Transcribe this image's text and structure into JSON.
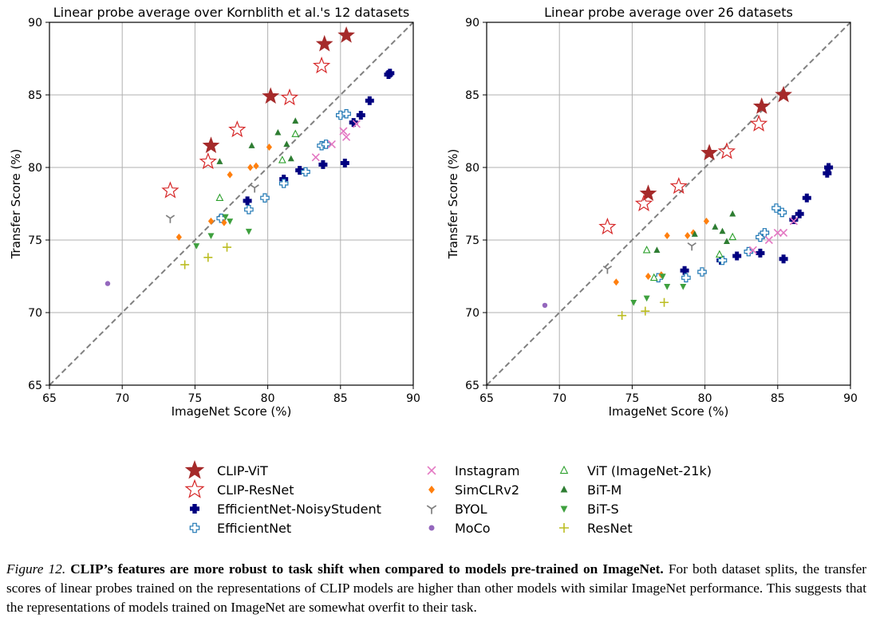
{
  "chart_data": [
    {
      "type": "scatter",
      "title": "Linear probe average over Kornblith et al.'s 12 datasets",
      "xlabel": "ImageNet Score (%)",
      "ylabel": "Transfer Score (%)",
      "xlim": [
        65,
        90
      ],
      "ylim": [
        65,
        90
      ],
      "xticks": [
        "65",
        "70",
        "75",
        "80",
        "85",
        "90"
      ],
      "yticks": [
        "65",
        "70",
        "75",
        "80",
        "85",
        "90"
      ],
      "grid": true,
      "diagonal": "y = x (dashed)",
      "series": [
        {
          "name": "CLIP-ViT",
          "points": [
            [
              76.1,
              81.5
            ],
            [
              80.2,
              84.9
            ],
            [
              83.9,
              88.5
            ],
            [
              85.4,
              89.1
            ]
          ]
        },
        {
          "name": "CLIP-ResNet",
          "points": [
            [
              73.3,
              78.4
            ],
            [
              75.9,
              80.4
            ],
            [
              77.9,
              82.6
            ],
            [
              81.5,
              84.8
            ],
            [
              83.7,
              87.0
            ]
          ]
        },
        {
          "name": "EfficientNet-NoisyStudent",
          "points": [
            [
              78.6,
              77.7
            ],
            [
              81.1,
              79.2
            ],
            [
              82.2,
              79.8
            ],
            [
              83.8,
              80.2
            ],
            [
              85.3,
              80.3
            ],
            [
              85.9,
              83.1
            ],
            [
              86.4,
              83.6
            ],
            [
              87.0,
              84.6
            ],
            [
              88.3,
              86.4
            ],
            [
              88.4,
              86.5
            ]
          ]
        },
        {
          "name": "EfficientNet",
          "points": [
            [
              76.8,
              76.5
            ],
            [
              78.7,
              77.1
            ],
            [
              79.8,
              77.9
            ],
            [
              81.1,
              78.9
            ],
            [
              82.6,
              79.7
            ],
            [
              83.7,
              81.5
            ],
            [
              84.0,
              81.6
            ],
            [
              85.0,
              83.6
            ],
            [
              85.4,
              83.7
            ]
          ]
        },
        {
          "name": "Instagram",
          "points": [
            [
              83.3,
              80.7
            ],
            [
              84.4,
              81.6
            ],
            [
              85.2,
              82.5
            ],
            [
              85.4,
              82.1
            ],
            [
              86.1,
              83.0
            ]
          ]
        },
        {
          "name": "SimCLRv2",
          "points": [
            [
              73.9,
              75.2
            ],
            [
              76.1,
              76.3
            ],
            [
              77.0,
              76.2
            ],
            [
              77.4,
              79.5
            ],
            [
              78.8,
              80.0
            ],
            [
              79.2,
              80.1
            ],
            [
              80.1,
              81.4
            ]
          ]
        },
        {
          "name": "BYOL",
          "points": [
            [
              73.3,
              76.5
            ],
            [
              79.1,
              78.6
            ]
          ]
        },
        {
          "name": "MoCo",
          "points": [
            [
              69.0,
              72.0
            ]
          ]
        },
        {
          "name": "ViT (ImageNet-21k)",
          "points": [
            [
              76.7,
              77.9
            ],
            [
              81.0,
              80.5
            ],
            [
              81.9,
              82.3
            ]
          ]
        },
        {
          "name": "BiT-M",
          "points": [
            [
              76.7,
              80.4
            ],
            [
              78.9,
              81.5
            ],
            [
              80.7,
              82.4
            ],
            [
              81.3,
              81.6
            ],
            [
              81.6,
              80.6
            ],
            [
              81.9,
              83.2
            ]
          ]
        },
        {
          "name": "BiT-S",
          "points": [
            [
              75.1,
              74.6
            ],
            [
              76.1,
              75.3
            ],
            [
              77.1,
              76.6
            ],
            [
              77.4,
              76.3
            ],
            [
              78.7,
              75.6
            ]
          ]
        },
        {
          "name": "ResNet",
          "points": [
            [
              74.3,
              73.3
            ],
            [
              75.9,
              73.8
            ],
            [
              77.2,
              74.5
            ]
          ]
        }
      ]
    },
    {
      "type": "scatter",
      "title": "Linear probe average over 26 datasets",
      "xlabel": "ImageNet Score (%)",
      "ylabel": "Transfer Score (%)",
      "xlim": [
        65,
        90
      ],
      "ylim": [
        65,
        90
      ],
      "xticks": [
        "65",
        "70",
        "75",
        "80",
        "85",
        "90"
      ],
      "yticks": [
        "65",
        "70",
        "75",
        "80",
        "85",
        "90"
      ],
      "grid": true,
      "diagonal": "y = x (dashed)",
      "series": [
        {
          "name": "CLIP-ViT",
          "points": [
            [
              76.1,
              78.2
            ],
            [
              80.3,
              81.0
            ],
            [
              83.9,
              84.2
            ],
            [
              85.4,
              85.0
            ]
          ]
        },
        {
          "name": "CLIP-ResNet",
          "points": [
            [
              73.3,
              75.9
            ],
            [
              75.8,
              77.5
            ],
            [
              78.2,
              78.7
            ],
            [
              81.5,
              81.1
            ],
            [
              83.7,
              83.0
            ]
          ]
        },
        {
          "name": "EfficientNet-NoisyStudent",
          "points": [
            [
              78.6,
              72.9
            ],
            [
              81.1,
              73.6
            ],
            [
              82.2,
              73.9
            ],
            [
              83.8,
              74.1
            ],
            [
              85.4,
              73.7
            ],
            [
              86.1,
              76.4
            ],
            [
              86.5,
              76.8
            ],
            [
              87.0,
              77.9
            ],
            [
              88.4,
              79.6
            ],
            [
              88.5,
              80.0
            ]
          ]
        },
        {
          "name": "EfficientNet",
          "points": [
            [
              76.8,
              72.4
            ],
            [
              78.7,
              72.4
            ],
            [
              79.8,
              72.8
            ],
            [
              81.2,
              73.6
            ],
            [
              83.0,
              74.2
            ],
            [
              83.8,
              75.2
            ],
            [
              84.1,
              75.5
            ],
            [
              84.9,
              77.2
            ],
            [
              85.3,
              76.9
            ]
          ]
        },
        {
          "name": "Instagram",
          "points": [
            [
              83.3,
              74.3
            ],
            [
              84.4,
              75.0
            ],
            [
              85.0,
              75.5
            ],
            [
              85.4,
              75.5
            ],
            [
              86.1,
              76.3
            ]
          ]
        },
        {
          "name": "SimCLRv2",
          "points": [
            [
              73.9,
              72.1
            ],
            [
              76.1,
              72.5
            ],
            [
              77.0,
              72.6
            ],
            [
              78.8,
              75.3
            ],
            [
              77.4,
              75.3
            ],
            [
              79.2,
              75.5
            ],
            [
              80.1,
              76.3
            ]
          ]
        },
        {
          "name": "BYOL",
          "points": [
            [
              73.3,
              73.0
            ],
            [
              79.1,
              74.6
            ]
          ]
        },
        {
          "name": "MoCo",
          "points": [
            [
              69.0,
              70.5
            ]
          ]
        },
        {
          "name": "ViT (ImageNet-21k)",
          "points": [
            [
              76.0,
              74.3
            ],
            [
              76.5,
              72.4
            ],
            [
              81.0,
              74.0
            ],
            [
              81.9,
              75.2
            ]
          ]
        },
        {
          "name": "BiT-M",
          "points": [
            [
              76.7,
              74.3
            ],
            [
              79.3,
              75.4
            ],
            [
              80.7,
              75.9
            ],
            [
              81.2,
              75.6
            ],
            [
              81.5,
              74.9
            ],
            [
              81.9,
              76.8
            ]
          ]
        },
        {
          "name": "BiT-S",
          "points": [
            [
              75.1,
              70.7
            ],
            [
              76.0,
              71.0
            ],
            [
              77.1,
              72.5
            ],
            [
              77.4,
              71.8
            ],
            [
              78.5,
              71.8
            ]
          ]
        },
        {
          "name": "ResNet",
          "points": [
            [
              74.3,
              69.8
            ],
            [
              75.9,
              70.1
            ],
            [
              77.2,
              70.7
            ]
          ]
        }
      ]
    }
  ],
  "legend": [
    {
      "name": "CLIP-ViT",
      "marker": "star-filled",
      "color": "#a52a2a"
    },
    {
      "name": "CLIP-ResNet",
      "marker": "star-open",
      "color": "#d62728"
    },
    {
      "name": "EfficientNet-NoisyStudent",
      "marker": "plus-filled",
      "color": "#000080"
    },
    {
      "name": "EfficientNet",
      "marker": "plus-open",
      "color": "#1f77b4"
    },
    {
      "name": "Instagram",
      "marker": "x",
      "color": "#e377c2"
    },
    {
      "name": "SimCLRv2",
      "marker": "diamond",
      "color": "#ff7f0e"
    },
    {
      "name": "BYOL",
      "marker": "tri-down",
      "color": "#7f7f7f"
    },
    {
      "name": "MoCo",
      "marker": "dot",
      "color": "#9467bd"
    },
    {
      "name": "ViT (ImageNet-21k)",
      "marker": "triangle-up-open",
      "color": "#2ca02c"
    },
    {
      "name": "BiT-M",
      "marker": "triangle-up",
      "color": "#2e7d32"
    },
    {
      "name": "BiT-S",
      "marker": "triangle-down",
      "color": "#3ea03e"
    },
    {
      "name": "ResNet",
      "marker": "plus-thin",
      "color": "#bcbd22"
    }
  ],
  "caption": {
    "figure_label": "Figure 12.",
    "lead": "CLIP’s features are more robust to task shift when compared to models pre-trained on ImageNet.",
    "body": "For both dataset splits, the transfer scores of linear probes trained on the representations of CLIP models are higher than other models with similar ImageNet performance. This suggests that the representations of models trained on ImageNet are somewhat overfit to their task."
  }
}
